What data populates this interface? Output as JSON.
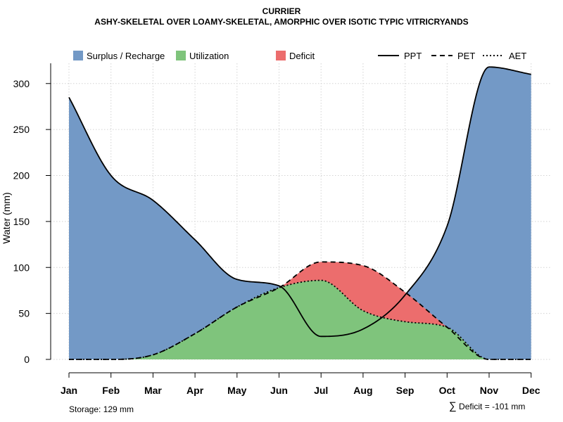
{
  "chart_data": {
    "type": "area",
    "title": "CURRIER",
    "subtitle": "ASHY-SKELETAL OVER LOAMY-SKELETAL, AMORPHIC OVER ISOTIC TYPIC VITRICRYANDS",
    "xlabel": "",
    "ylabel": "Water (mm)",
    "ylim": [
      0,
      322
    ],
    "yticks": [
      0,
      50,
      100,
      150,
      200,
      250,
      300
    ],
    "grid": true,
    "legend_position": "top",
    "categories": [
      "Jan",
      "Feb",
      "Mar",
      "Apr",
      "May",
      "Jun",
      "Jul",
      "Aug",
      "Sep",
      "Oct",
      "Nov",
      "Dec"
    ],
    "series": [
      {
        "name": "PPT",
        "line_style": "solid",
        "values": [
          285,
          200,
          173,
          130,
          87,
          80,
          25,
          33,
          70,
          145,
          318,
          310
        ]
      },
      {
        "name": "PET",
        "line_style": "dashed",
        "values": [
          0,
          0,
          5,
          28,
          57,
          78,
          106,
          102,
          73,
          35,
          0,
          0
        ]
      },
      {
        "name": "AET",
        "line_style": "dotted",
        "values": [
          0,
          0,
          5,
          28,
          57,
          78,
          86,
          53,
          41,
          35,
          0,
          0
        ]
      }
    ],
    "fills": [
      {
        "name": "Surplus / Recharge",
        "color": "#7399C6"
      },
      {
        "name": "Utilization",
        "color": "#7FC47C"
      },
      {
        "name": "Deficit",
        "color": "#EC6D6D"
      }
    ],
    "legend": {
      "fill_items": [
        "Surplus / Recharge",
        "Utilization",
        "Deficit"
      ],
      "line_items": [
        "PPT",
        "PET",
        "AET"
      ]
    },
    "annotations": {
      "storage": "Storage: 129 mm",
      "deficit": "Deficit = -101 mm",
      "deficit_symbol": "∑"
    }
  }
}
